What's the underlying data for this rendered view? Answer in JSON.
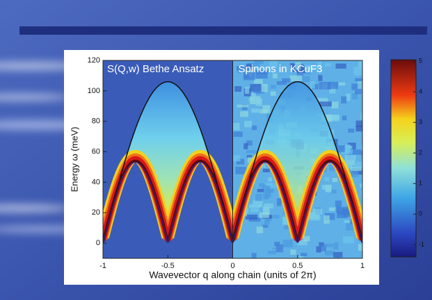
{
  "chart_data": {
    "type": "heatmap",
    "panel_titles": [
      "S(Q,w) Bethe Ansatz",
      "Spinons in KCuF3"
    ],
    "xlabel": "Wavevector q along chain (units of 2π)",
    "ylabel": "Energy ω (meV)",
    "xlim": [
      -1,
      1
    ],
    "xticks": [
      -1,
      -0.5,
      0,
      0.5,
      1
    ],
    "ylim": [
      -10,
      120
    ],
    "yticks": [
      0,
      20,
      40,
      60,
      80,
      100,
      120
    ],
    "colorbar_lim": [
      -1.4,
      5.05
    ],
    "colorbar_ticks": [
      -1,
      0,
      1,
      2,
      3,
      4,
      5
    ],
    "upper_boundary_peak": 106,
    "lower_boundary_peak": 53
  }
}
